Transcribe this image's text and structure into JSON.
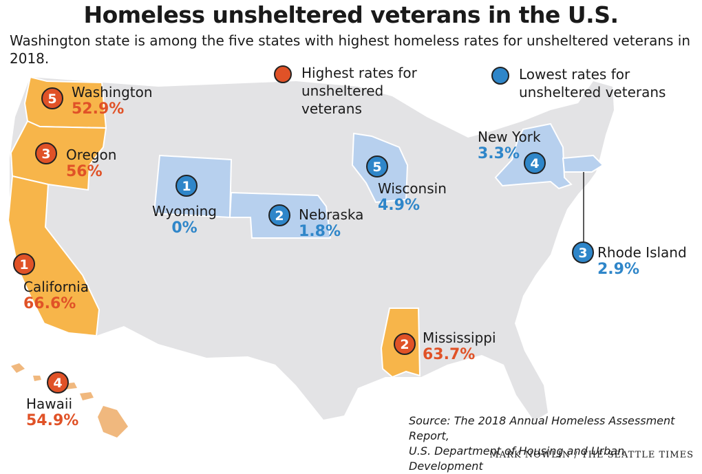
{
  "title": "Homeless unsheltered veterans in the U.S.",
  "subtitle": "Washington state is among the five states with highest homeless rates for unsheltered veterans in 2018.",
  "legend": {
    "highest": "Highest rates for unsheltered veterans",
    "lowest": "Lowest rates for unsheltered veterans"
  },
  "colors": {
    "high_state": "#f7b54a",
    "high_badge": "#e05227",
    "low_state": "#b7d0ee",
    "low_badge": "#2f86c9",
    "land": "#e3e3e5"
  },
  "highest_states": [
    {
      "rank": "1",
      "name": "California",
      "pct": "66.6%"
    },
    {
      "rank": "2",
      "name": "Mississippi",
      "pct": "63.7%"
    },
    {
      "rank": "3",
      "name": "Oregon",
      "pct": "56%"
    },
    {
      "rank": "4",
      "name": "Hawaii",
      "pct": "54.9%"
    },
    {
      "rank": "5",
      "name": "Washington",
      "pct": "52.9%"
    }
  ],
  "lowest_states": [
    {
      "rank": "1",
      "name": "Wyoming",
      "pct": "0%"
    },
    {
      "rank": "2",
      "name": "Nebraska",
      "pct": "1.8%"
    },
    {
      "rank": "3",
      "name": "Rhode Island",
      "pct": "2.9%"
    },
    {
      "rank": "4",
      "name": "New York",
      "pct": "3.3%"
    },
    {
      "rank": "5",
      "name": "Wisconsin",
      "pct": "4.9%"
    }
  ],
  "source": {
    "line1": "Source: The 2018 Annual Homeless Assessment Report,",
    "line2": "U.S. Department of Housing and Urban Development"
  },
  "credit": "MARK NOWLIN / THE SEATTLE TIMES"
}
